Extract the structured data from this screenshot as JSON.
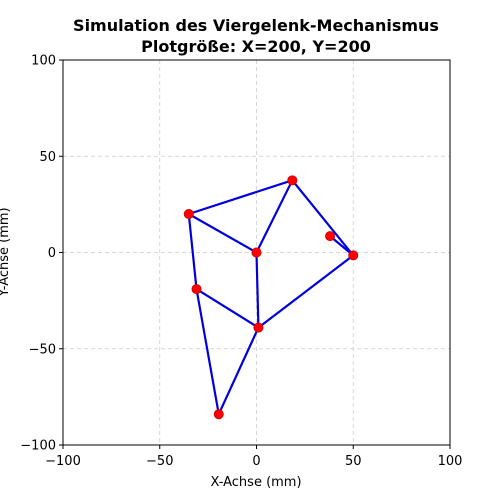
{
  "chart_data": {
    "type": "line",
    "title_line1": "Simulation des Viergelenk-Mechanismus",
    "title_line2": "Plotgröße: X=200, Y=200",
    "xlabel": "X-Achse (mm)",
    "ylabel": "Y-Achse (mm)",
    "xlim": [
      -100,
      100
    ],
    "ylim": [
      -100,
      100
    ],
    "xticks": [
      -100,
      -50,
      0,
      50,
      100
    ],
    "yticks": [
      -100,
      -50,
      0,
      50,
      100
    ],
    "grid": true,
    "points": [
      {
        "x": 0,
        "y": 0
      },
      {
        "x": 18.5,
        "y": 37.5
      },
      {
        "x": -35,
        "y": 20
      },
      {
        "x": 50,
        "y": -1.5
      },
      {
        "x": 38,
        "y": 8.5
      },
      {
        "x": -31,
        "y": -19
      },
      {
        "x": 1,
        "y": -39
      },
      {
        "x": -19.5,
        "y": -84
      }
    ],
    "links": [
      {
        "from": {
          "x": 0,
          "y": 0
        },
        "to": {
          "x": 18.5,
          "y": 37.5
        }
      },
      {
        "from": {
          "x": 18.5,
          "y": 37.5
        },
        "to": {
          "x": -35,
          "y": 20
        }
      },
      {
        "from": {
          "x": -35,
          "y": 20
        },
        "to": {
          "x": 0,
          "y": 0
        }
      },
      {
        "from": {
          "x": 18.5,
          "y": 37.5
        },
        "to": {
          "x": 50,
          "y": -1.5
        }
      },
      {
        "from": {
          "x": 38,
          "y": 8.5
        },
        "to": {
          "x": 50,
          "y": -1.5
        }
      },
      {
        "from": {
          "x": -35,
          "y": 20
        },
        "to": {
          "x": -31,
          "y": -19
        }
      },
      {
        "from": {
          "x": 0,
          "y": 0
        },
        "to": {
          "x": 1,
          "y": -39
        }
      },
      {
        "from": {
          "x": 50,
          "y": -1.5
        },
        "to": {
          "x": 1,
          "y": -39
        }
      },
      {
        "from": {
          "x": -31,
          "y": -19
        },
        "to": {
          "x": 1,
          "y": -39
        }
      },
      {
        "from": {
          "x": -31,
          "y": -19
        },
        "to": {
          "x": -19.5,
          "y": -84
        }
      },
      {
        "from": {
          "x": 1,
          "y": -39
        },
        "to": {
          "x": -19.5,
          "y": -84
        }
      }
    ],
    "colors": {
      "link": "#0000dd",
      "joint": "#ff0000",
      "joint_edge": "#cc0000",
      "grid": "#cccccc",
      "axes": "#000000"
    }
  }
}
